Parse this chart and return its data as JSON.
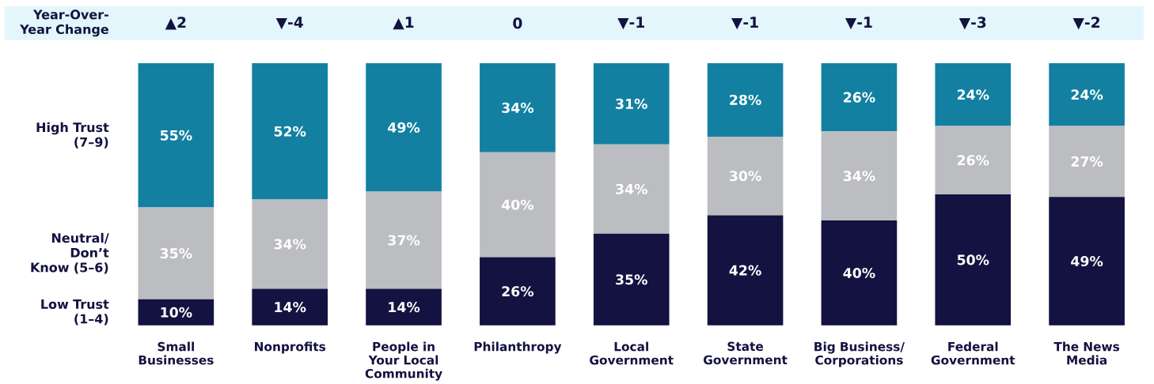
{
  "chart_data": {
    "type": "bar",
    "stacked": true,
    "categories": [
      "Small Businesses",
      "Nonprofits",
      "People in Your Local Community",
      "Philanthropy",
      "Local Government",
      "State Government",
      "Big Business/ Corporations",
      "Federal Government",
      "The News Media"
    ],
    "series": [
      {
        "name": "Low Trust (1–4)",
        "color": "#131240",
        "values": [
          10,
          14,
          14,
          26,
          35,
          42,
          40,
          50,
          49
        ],
        "value_labels": [
          "10%",
          "14%",
          "14%",
          "26%",
          "35%",
          "42%",
          "40%",
          "50%",
          "49%"
        ]
      },
      {
        "name": "Neutral/ Don’t Know (5–6)",
        "color": "#bcbdc1",
        "values": [
          35,
          34,
          37,
          40,
          34,
          30,
          34,
          26,
          27
        ],
        "value_labels": [
          "35%",
          "34%",
          "37%",
          "40%",
          "34%",
          "30%",
          "34%",
          "26%",
          "27%"
        ]
      },
      {
        "name": "High Trust (7–9)",
        "color": "#1380a1",
        "values": [
          55,
          52,
          49,
          34,
          31,
          28,
          26,
          24,
          24
        ],
        "value_labels": [
          "55%",
          "52%",
          "49%",
          "34%",
          "31%",
          "28%",
          "26%",
          "24%",
          "24%"
        ]
      }
    ],
    "ylim": [
      0,
      100
    ],
    "annotations": [
      "Year-Over-Year Change",
      "▲2",
      "▼-4",
      "▲1",
      "0",
      "▼-1",
      "▼-1",
      "▼-1",
      "▼-3",
      "▼-2"
    ]
  }
}
